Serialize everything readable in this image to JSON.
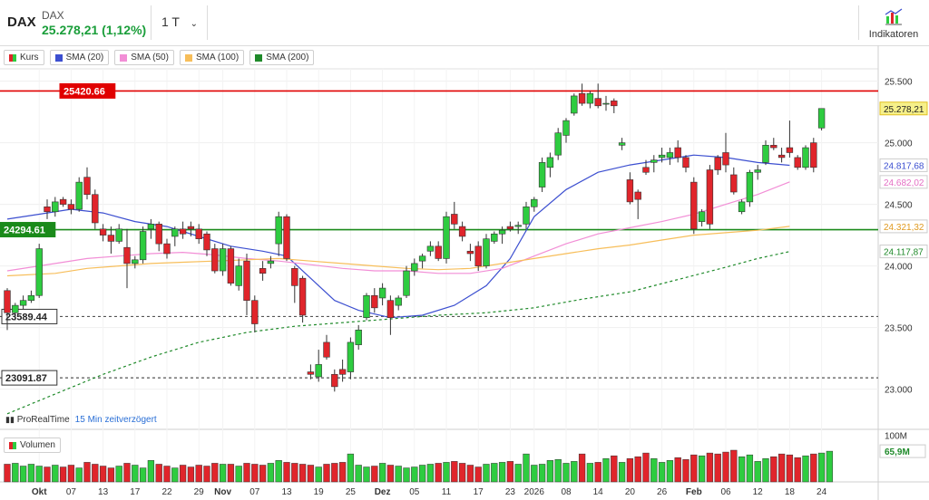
{
  "header": {
    "symbol": "DAX",
    "name": "DAX",
    "price_change": "25.278,21 (1,12%)",
    "period": "1 T",
    "indicators_label": "Indikatoren",
    "indicators_icon": "chart-indicator-icon",
    "dropdown_icon": "chevron-down-icon"
  },
  "legend": [
    {
      "label": "Kurs",
      "color": "#2ecc40"
    },
    {
      "label": "SMA (20)",
      "color": "#3c4fd0"
    },
    {
      "label": "SMA (50)",
      "color": "#f28ed6"
    },
    {
      "label": "SMA (100)",
      "color": "#f7be5a"
    },
    {
      "label": "SMA (200)",
      "color": "#1f8a2a"
    }
  ],
  "source": {
    "name": "ProRealTime",
    "delay": "15 Min zeitverzögert"
  },
  "price_levels": [
    {
      "value": 25420.66,
      "label": "25420.66",
      "color": "#e00000",
      "style": "solid"
    },
    {
      "value": 24294.61,
      "label": "24294.61",
      "color": "#1a8a1a",
      "style": "solid"
    },
    {
      "value": 23589.44,
      "label": "23589.44",
      "color": "#555555",
      "style": "dashed"
    },
    {
      "value": 23091.87,
      "label": "23091.87",
      "color": "#555555",
      "style": "dashed"
    }
  ],
  "right_labels": [
    {
      "value": 25278.21,
      "label": "25.278,21",
      "color": "#222222",
      "bg": "#f6f08a",
      "border": "#e0c020"
    },
    {
      "value": 24817.68,
      "label": "24.817,68",
      "color": "#3c4fd0",
      "bg": "#ffffff",
      "border": "#cccccc"
    },
    {
      "value": 24682.02,
      "label": "24.682,02",
      "color": "#e46fc4",
      "bg": "#ffffff",
      "border": "#cccccc"
    },
    {
      "value": 24321.32,
      "label": "24.321,32",
      "color": "#e09a20",
      "bg": "#ffffff",
      "border": "#cccccc"
    },
    {
      "value": 24117.87,
      "label": "24.117,87",
      "color": "#1f8a2a",
      "bg": "#ffffff",
      "border": "#cccccc"
    }
  ],
  "volume": {
    "label": "Volumen",
    "axis_label": "100M",
    "current_label": "65,9M",
    "current_value": 65.9,
    "axis_value": 100
  },
  "chart_data": {
    "type": "candlestick",
    "ylim": [
      22850,
      25600
    ],
    "yticks": [
      {
        "value": 23000,
        "label": "23.000"
      },
      {
        "value": 23500,
        "label": "23.500"
      },
      {
        "value": 24000,
        "label": "24.000"
      },
      {
        "value": 24500,
        "label": "24.500"
      },
      {
        "value": 25000,
        "label": "25.000"
      },
      {
        "value": 25500,
        "label": "25.500"
      }
    ],
    "xticks": [
      {
        "i": 4,
        "label": "Okt"
      },
      {
        "i": 8,
        "label": "07"
      },
      {
        "i": 12,
        "label": "13"
      },
      {
        "i": 16,
        "label": "17"
      },
      {
        "i": 20,
        "label": "22"
      },
      {
        "i": 24,
        "label": "29"
      },
      {
        "i": 27,
        "label": "Nov"
      },
      {
        "i": 31,
        "label": "07"
      },
      {
        "i": 35,
        "label": "13"
      },
      {
        "i": 39,
        "label": "19"
      },
      {
        "i": 43,
        "label": "25"
      },
      {
        "i": 47,
        "label": "Dez"
      },
      {
        "i": 51,
        "label": "05"
      },
      {
        "i": 55,
        "label": "11"
      },
      {
        "i": 59,
        "label": "17"
      },
      {
        "i": 63,
        "label": "23"
      },
      {
        "i": 66,
        "label": "2026"
      },
      {
        "i": 70,
        "label": "08"
      },
      {
        "i": 74,
        "label": "14"
      },
      {
        "i": 78,
        "label": "20"
      },
      {
        "i": 82,
        "label": "26"
      },
      {
        "i": 86,
        "label": "Feb"
      },
      {
        "i": 90,
        "label": "06"
      },
      {
        "i": 94,
        "label": "12"
      },
      {
        "i": 98,
        "label": "18"
      },
      {
        "i": 102,
        "label": "24"
      }
    ],
    "candles": [
      [
        23800,
        23820,
        23480,
        23620
      ],
      [
        23620,
        23700,
        23560,
        23680
      ],
      [
        23680,
        23760,
        23650,
        23720
      ],
      [
        23720,
        23800,
        23700,
        23760
      ],
      [
        23760,
        24180,
        23740,
        24140
      ],
      [
        24480,
        24540,
        24380,
        24440
      ],
      [
        24440,
        24560,
        24400,
        24520
      ],
      [
        24540,
        24560,
        24480,
        24500
      ],
      [
        24500,
        24540,
        24420,
        24460
      ],
      [
        24460,
        24720,
        24440,
        24680
      ],
      [
        24720,
        24800,
        24540,
        24580
      ],
      [
        24580,
        24620,
        24300,
        24350
      ],
      [
        24300,
        24340,
        24200,
        24250
      ],
      [
        24250,
        24320,
        24100,
        24200
      ],
      [
        24200,
        24340,
        24180,
        24300
      ],
      [
        24150,
        24300,
        23820,
        24020
      ],
      [
        24020,
        24080,
        23980,
        24050
      ],
      [
        24050,
        24320,
        24020,
        24280
      ],
      [
        24300,
        24380,
        24220,
        24340
      ],
      [
        24340,
        24360,
        24120,
        24180
      ],
      [
        24180,
        24220,
        24060,
        24100
      ],
      [
        24240,
        24320,
        24160,
        24300
      ],
      [
        24300,
        24360,
        24220,
        24260
      ],
      [
        24320,
        24360,
        24240,
        24300
      ],
      [
        24300,
        24340,
        24180,
        24220
      ],
      [
        24260,
        24280,
        24080,
        24130
      ],
      [
        24140,
        24180,
        23940,
        23960
      ],
      [
        23960,
        24180,
        23920,
        24140
      ],
      [
        24140,
        24160,
        23840,
        23860
      ],
      [
        23840,
        24060,
        23800,
        24000
      ],
      [
        24040,
        24100,
        23600,
        23720
      ],
      [
        23720,
        23760,
        23460,
        23530
      ],
      [
        23980,
        24040,
        23880,
        23940
      ],
      [
        24020,
        24080,
        23980,
        24040
      ],
      [
        24180,
        24440,
        24080,
        24400
      ],
      [
        24400,
        24420,
        24040,
        24060
      ],
      [
        23980,
        24000,
        23700,
        23840
      ],
      [
        23900,
        23920,
        23540,
        23600
      ],
      [
        23140,
        23200,
        23080,
        23120
      ],
      [
        23100,
        23320,
        23060,
        23200
      ],
      [
        23380,
        23440,
        23240,
        23260
      ],
      [
        23120,
        23160,
        22980,
        23020
      ],
      [
        23160,
        23240,
        23060,
        23120
      ],
      [
        23140,
        23420,
        23080,
        23380
      ],
      [
        23360,
        23520,
        23320,
        23480
      ],
      [
        23580,
        23780,
        23560,
        23760
      ],
      [
        23760,
        23820,
        23620,
        23660
      ],
      [
        23740,
        23860,
        23680,
        23820
      ],
      [
        23720,
        23760,
        23440,
        23580
      ],
      [
        23680,
        23760,
        23640,
        23740
      ],
      [
        23760,
        24000,
        23740,
        23960
      ],
      [
        23960,
        24060,
        23920,
        24020
      ],
      [
        24040,
        24100,
        23980,
        24080
      ],
      [
        24120,
        24200,
        24080,
        24160
      ],
      [
        24160,
        24200,
        24040,
        24060
      ],
      [
        24060,
        24440,
        24020,
        24400
      ],
      [
        24420,
        24520,
        24300,
        24340
      ],
      [
        24320,
        24360,
        24200,
        24240
      ],
      [
        24120,
        24180,
        24040,
        24100
      ],
      [
        24160,
        24200,
        23960,
        24000
      ],
      [
        24000,
        24260,
        23980,
        24220
      ],
      [
        24200,
        24280,
        24180,
        24260
      ],
      [
        24260,
        24320,
        24180,
        24290
      ],
      [
        24320,
        24360,
        24280,
        24300
      ],
      [
        24320,
        24360,
        24260,
        24330
      ],
      [
        24340,
        24520,
        24300,
        24480
      ],
      [
        24480,
        24560,
        24440,
        24540
      ],
      [
        24640,
        24880,
        24600,
        24840
      ],
      [
        24800,
        24920,
        24720,
        24880
      ],
      [
        24900,
        25120,
        24860,
        25080
      ],
      [
        25060,
        25200,
        25000,
        25180
      ],
      [
        25240,
        25400,
        25220,
        25380
      ],
      [
        25400,
        25480,
        25300,
        25320
      ],
      [
        25320,
        25420,
        25280,
        25400
      ],
      [
        25360,
        25480,
        25280,
        25300
      ],
      [
        25320,
        25380,
        25260,
        25320
      ],
      [
        25340,
        25360,
        25240,
        25300
      ],
      [
        24980,
        25040,
        24940,
        25000
      ],
      [
        24700,
        24760,
        24500,
        24520
      ],
      [
        24600,
        24620,
        24380,
        24540
      ],
      [
        24800,
        24860,
        24740,
        24760
      ],
      [
        24840,
        24900,
        24760,
        24860
      ],
      [
        24880,
        24960,
        24840,
        24900
      ],
      [
        24880,
        24960,
        24820,
        24920
      ],
      [
        24960,
        25020,
        24840,
        24880
      ],
      [
        24880,
        24900,
        24760,
        24800
      ],
      [
        24680,
        24720,
        24260,
        24300
      ],
      [
        24360,
        24460,
        24320,
        24440
      ],
      [
        24780,
        24820,
        24300,
        24340
      ],
      [
        24880,
        24900,
        24740,
        24780
      ],
      [
        24920,
        25080,
        24760,
        24820
      ],
      [
        24740,
        24800,
        24580,
        24600
      ],
      [
        24440,
        24540,
        24420,
        24520
      ],
      [
        24520,
        24780,
        24480,
        24760
      ],
      [
        24760,
        24820,
        24700,
        24780
      ],
      [
        24840,
        25020,
        24820,
        24980
      ],
      [
        24980,
        25040,
        24940,
        24960
      ],
      [
        24900,
        24960,
        24840,
        24880
      ],
      [
        24960,
        25180,
        24880,
        24920
      ],
      [
        24880,
        24900,
        24780,
        24800
      ],
      [
        24800,
        24980,
        24780,
        24960
      ],
      [
        25000,
        25040,
        24760,
        24800
      ],
      [
        25120,
        25280,
        25100,
        25278
      ]
    ],
    "volume_values": [
      38,
      40,
      34,
      38,
      34,
      32,
      36,
      32,
      36,
      30,
      42,
      38,
      34,
      30,
      34,
      40,
      36,
      30,
      46,
      38,
      34,
      30,
      36,
      32,
      36,
      34,
      40,
      38,
      38,
      34,
      40,
      38,
      36,
      40,
      46,
      42,
      40,
      38,
      36,
      32,
      38,
      40,
      42,
      60,
      36,
      32,
      34,
      40,
      36,
      34,
      30,
      32,
      36,
      38,
      40,
      42,
      44,
      40,
      36,
      32,
      38,
      40,
      42,
      44,
      38,
      60,
      36,
      38,
      46,
      48,
      40,
      44,
      60,
      40,
      42,
      50,
      56,
      42,
      50,
      54,
      62,
      50,
      42,
      46,
      52,
      48,
      58,
      56,
      62,
      60,
      64,
      68,
      54,
      58,
      44,
      50,
      54,
      60,
      58,
      52,
      56,
      60,
      62,
      65.9
    ],
    "sma": [
      {
        "name": "SMA (20)",
        "color": "#3c4fd0",
        "dash": "",
        "points": [
          [
            0,
            24380
          ],
          [
            4,
            24420
          ],
          [
            8,
            24460
          ],
          [
            12,
            24430
          ],
          [
            16,
            24360
          ],
          [
            20,
            24320
          ],
          [
            24,
            24240
          ],
          [
            28,
            24160
          ],
          [
            32,
            24120
          ],
          [
            35,
            24080
          ],
          [
            38,
            23900
          ],
          [
            41,
            23720
          ],
          [
            44,
            23640
          ],
          [
            48,
            23580
          ],
          [
            52,
            23600
          ],
          [
            56,
            23680
          ],
          [
            60,
            23840
          ],
          [
            63,
            24060
          ],
          [
            66,
            24400
          ],
          [
            70,
            24620
          ],
          [
            74,
            24760
          ],
          [
            78,
            24820
          ],
          [
            82,
            24860
          ],
          [
            86,
            24900
          ],
          [
            90,
            24880
          ],
          [
            94,
            24840
          ],
          [
            98,
            24817
          ]
        ]
      },
      {
        "name": "SMA (50)",
        "color": "#f28ed6",
        "dash": "",
        "points": [
          [
            0,
            23960
          ],
          [
            6,
            24020
          ],
          [
            10,
            24060
          ],
          [
            14,
            24080
          ],
          [
            18,
            24100
          ],
          [
            22,
            24110
          ],
          [
            26,
            24090
          ],
          [
            30,
            24060
          ],
          [
            34,
            24040
          ],
          [
            38,
            24010
          ],
          [
            42,
            23980
          ],
          [
            46,
            23960
          ],
          [
            50,
            23960
          ],
          [
            54,
            23940
          ],
          [
            58,
            23940
          ],
          [
            62,
            23980
          ],
          [
            66,
            24080
          ],
          [
            70,
            24180
          ],
          [
            74,
            24260
          ],
          [
            78,
            24310
          ],
          [
            82,
            24360
          ],
          [
            86,
            24420
          ],
          [
            90,
            24500
          ],
          [
            94,
            24580
          ],
          [
            98,
            24682
          ]
        ]
      },
      {
        "name": "SMA (100)",
        "color": "#f7be5a",
        "dash": "",
        "points": [
          [
            0,
            23920
          ],
          [
            6,
            23940
          ],
          [
            10,
            23980
          ],
          [
            14,
            24000
          ],
          [
            18,
            24020
          ],
          [
            22,
            24030
          ],
          [
            26,
            24040
          ],
          [
            30,
            24050
          ],
          [
            34,
            24060
          ],
          [
            38,
            24040
          ],
          [
            42,
            24020
          ],
          [
            46,
            24000
          ],
          [
            50,
            23980
          ],
          [
            54,
            23970
          ],
          [
            58,
            23980
          ],
          [
            62,
            24020
          ],
          [
            66,
            24060
          ],
          [
            70,
            24100
          ],
          [
            74,
            24140
          ],
          [
            78,
            24170
          ],
          [
            82,
            24210
          ],
          [
            86,
            24250
          ],
          [
            90,
            24270
          ],
          [
            94,
            24290
          ],
          [
            98,
            24321
          ]
        ]
      },
      {
        "name": "SMA (200)",
        "color": "#1f8a2a",
        "dash": "3,3",
        "points": [
          [
            0,
            22800
          ],
          [
            6,
            22960
          ],
          [
            12,
            23120
          ],
          [
            18,
            23260
          ],
          [
            24,
            23380
          ],
          [
            30,
            23460
          ],
          [
            36,
            23510
          ],
          [
            42,
            23540
          ],
          [
            48,
            23570
          ],
          [
            54,
            23600
          ],
          [
            60,
            23620
          ],
          [
            66,
            23660
          ],
          [
            72,
            23730
          ],
          [
            78,
            23790
          ],
          [
            84,
            23890
          ],
          [
            90,
            23990
          ],
          [
            94,
            24060
          ],
          [
            98,
            24117
          ]
        ]
      }
    ]
  }
}
